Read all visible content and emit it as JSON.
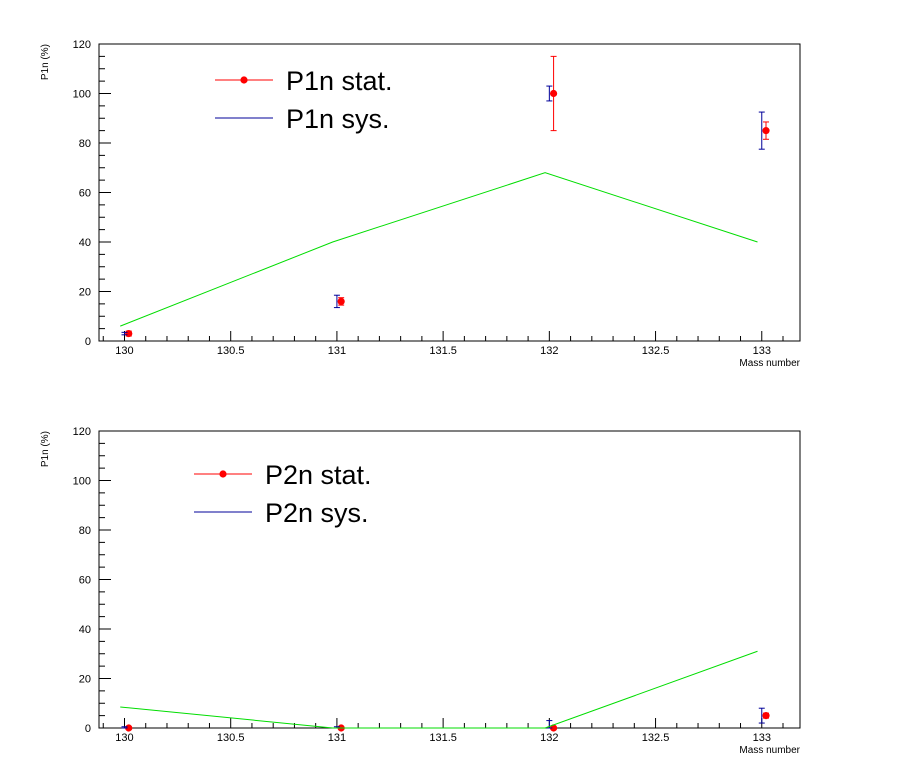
{
  "chart_data": [
    {
      "type": "scatter",
      "title": "",
      "xlabel": "Mass number",
      "ylabel": "P1n (%)",
      "xlim": [
        129.88,
        133.18
      ],
      "ylim": [
        0,
        120
      ],
      "xticks": [
        "130",
        "130.5",
        "131",
        "131.5",
        "132",
        "132.5",
        "133"
      ],
      "yticks": [
        "0",
        "20",
        "40",
        "60",
        "80",
        "100",
        "120"
      ],
      "legend_position": "top-left",
      "series": [
        {
          "name": "P1n stat.",
          "color": "#ff0000",
          "marker": "circle",
          "points": [
            {
              "x": 130.02,
              "y": 3,
              "err": 1
            },
            {
              "x": 131.02,
              "y": 16,
              "err": 1.5
            },
            {
              "x": 132.02,
              "y": 100,
              "err": 15
            },
            {
              "x": 133.02,
              "y": 85,
              "err": 3.5
            }
          ]
        },
        {
          "name": "P1n sys.",
          "color": "#000099",
          "marker": "errorbar",
          "points": [
            {
              "x": 130.0,
              "y": 3,
              "err": 0.5
            },
            {
              "x": 131.0,
              "y": 16,
              "err": 2.5
            },
            {
              "x": 132.0,
              "y": 100,
              "err": 3
            },
            {
              "x": 133.0,
              "y": 85,
              "err": 7.5
            }
          ]
        },
        {
          "name": "",
          "color": "#00dd00",
          "marker": "line",
          "points": [
            {
              "x": 129.98,
              "y": 6
            },
            {
              "x": 130.98,
              "y": 40
            },
            {
              "x": 131.98,
              "y": 68
            },
            {
              "x": 132.98,
              "y": 40
            }
          ]
        }
      ]
    },
    {
      "type": "scatter",
      "title": "",
      "xlabel": "Mass number",
      "ylabel": "P1n (%)",
      "xlim": [
        129.88,
        133.18
      ],
      "ylim": [
        0,
        120
      ],
      "xticks": [
        "130",
        "130.5",
        "131",
        "131.5",
        "132",
        "132.5",
        "133"
      ],
      "yticks": [
        "0",
        "20",
        "40",
        "60",
        "80",
        "100",
        "120"
      ],
      "legend_position": "top-left",
      "series": [
        {
          "name": "P2n stat.",
          "color": "#ff0000",
          "marker": "circle",
          "points": [
            {
              "x": 130.02,
              "y": 0,
              "err": 0.5
            },
            {
              "x": 131.02,
              "y": 0,
              "err": 0.5
            },
            {
              "x": 132.02,
              "y": 0,
              "err": 0.5
            },
            {
              "x": 133.02,
              "y": 5,
              "err": 1
            }
          ]
        },
        {
          "name": "P2n sys.",
          "color": "#000099",
          "marker": "errorbar",
          "points": [
            {
              "x": 130.0,
              "y": 0,
              "err": 0.5
            },
            {
              "x": 131.0,
              "y": 0,
              "err": 0.5
            },
            {
              "x": 132.0,
              "y": 0,
              "err": 3
            },
            {
              "x": 133.0,
              "y": 5,
              "err": 3
            }
          ]
        },
        {
          "name": "",
          "color": "#00dd00",
          "marker": "line",
          "points": [
            {
              "x": 129.98,
              "y": 8.5
            },
            {
              "x": 130.98,
              "y": 0
            },
            {
              "x": 131.98,
              "y": 0
            },
            {
              "x": 132.98,
              "y": 31
            }
          ]
        }
      ]
    }
  ]
}
